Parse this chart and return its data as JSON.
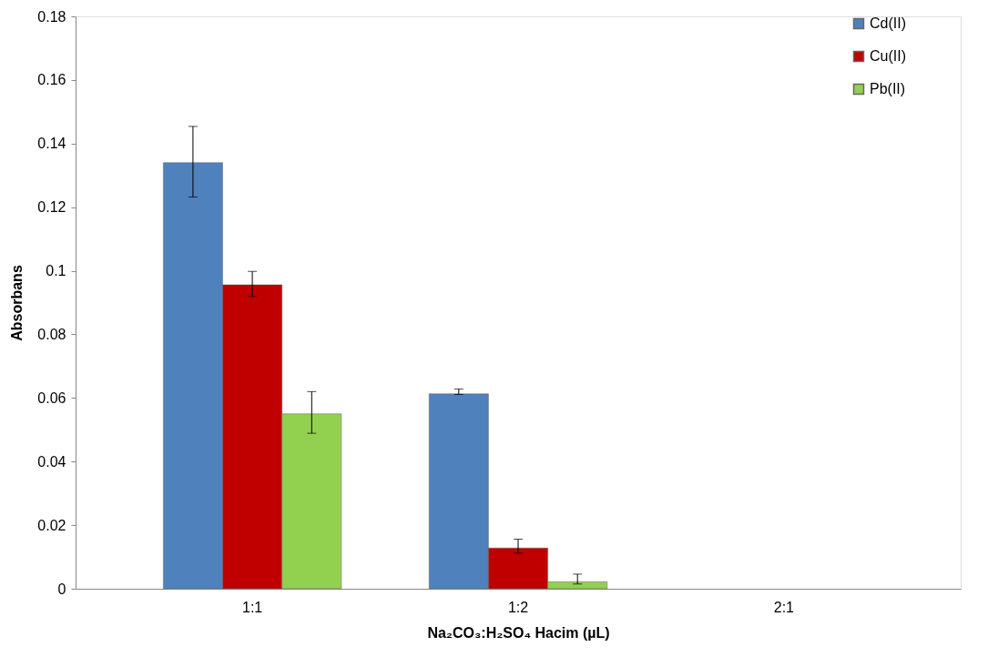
{
  "chart_data": {
    "type": "bar",
    "xlabel": "Na₂CO₃:H₂SO₄ Hacim (µL)",
    "ylabel": "Absorbans",
    "categories": [
      "1:1",
      "1:2",
      "2:1"
    ],
    "series": [
      {
        "name": "Cd(II)",
        "color": "#4f81bd",
        "values": [
          0.134,
          0.0613,
          null
        ],
        "errors": [
          [
            0.1232,
            0.1454
          ],
          [
            0.0611,
            0.0628
          ],
          null
        ]
      },
      {
        "name": "Cu(II)",
        "color": "#c00000",
        "values": [
          0.0956,
          0.0128,
          null
        ],
        "errors": [
          [
            0.0919,
            0.0998
          ],
          [
            0.0112,
            0.0156
          ],
          null
        ]
      },
      {
        "name": "Pb(II)",
        "color": "#92d050",
        "values": [
          0.055,
          0.0022,
          null
        ],
        "errors": [
          [
            0.0489,
            0.062
          ],
          [
            0.0015,
            0.0046
          ],
          null
        ]
      }
    ],
    "ylim": [
      0,
      0.18
    ],
    "yticks": [
      0,
      0.02,
      0.04,
      0.06,
      0.08,
      0.1,
      0.12,
      0.14,
      0.16,
      0.18
    ],
    "grid": false,
    "legend": "right"
  }
}
